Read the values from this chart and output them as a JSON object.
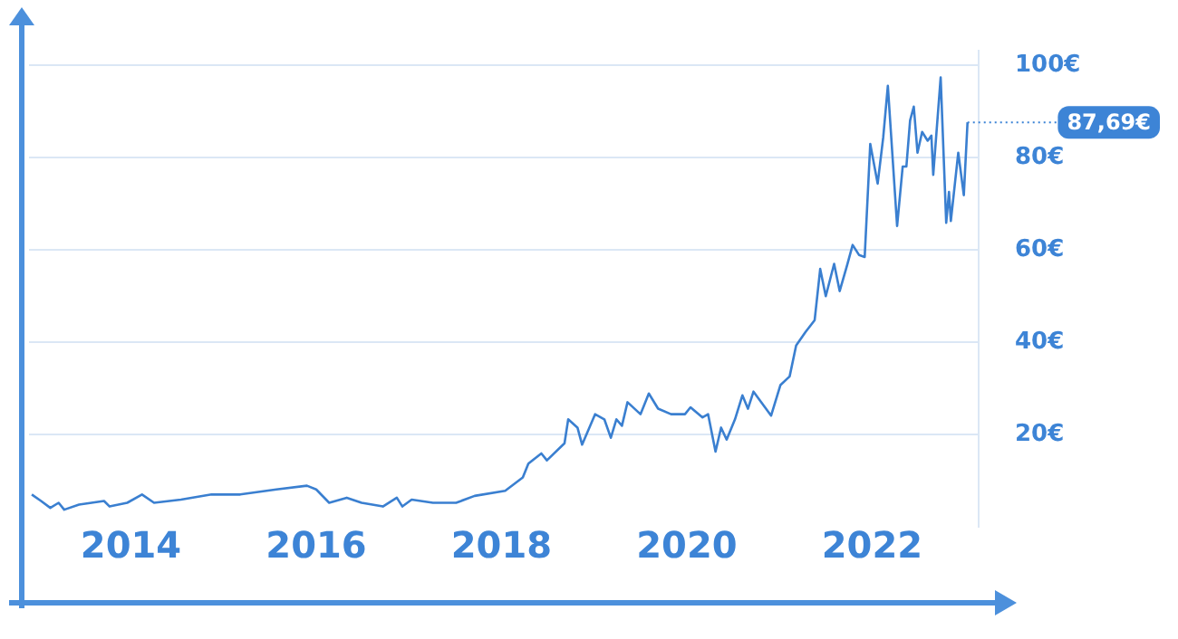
{
  "chart_data": {
    "type": "line",
    "x": [
      2012.93,
      2013.03,
      2013.13,
      2013.22,
      2013.28,
      2013.44,
      2013.71,
      2013.77,
      2013.96,
      2014.12,
      2014.25,
      2014.54,
      2014.87,
      2015.18,
      2015.57,
      2015.9,
      2016.0,
      2016.14,
      2016.33,
      2016.49,
      2016.72,
      2016.87,
      2016.93,
      2017.03,
      2017.26,
      2017.51,
      2017.71,
      2018.04,
      2018.23,
      2018.29,
      2018.43,
      2018.49,
      2018.68,
      2018.72,
      2018.82,
      2018.87,
      2019.01,
      2019.11,
      2019.18,
      2019.24,
      2019.3,
      2019.36,
      2019.5,
      2019.59,
      2019.69,
      2019.83,
      2019.98,
      2020.04,
      2020.17,
      2020.23,
      2020.31,
      2020.37,
      2020.43,
      2020.52,
      2020.6,
      2020.66,
      2020.72,
      2020.91,
      2021.01,
      2021.11,
      2021.18,
      2021.28,
      2021.38,
      2021.44,
      2021.5,
      2021.59,
      2021.65,
      2021.73,
      2021.79,
      2021.86,
      2021.92,
      2021.98,
      2022.06,
      2022.12,
      2022.17,
      2022.27,
      2022.33,
      2022.37,
      2022.41,
      2022.45,
      2022.49,
      2022.54,
      2022.6,
      2022.64,
      2022.66,
      2022.74,
      2022.8,
      2022.83,
      2022.85,
      2022.93,
      2022.99,
      2023.03
    ],
    "series": [
      {
        "color": "#3a7fd0",
        "values": [
          7.0,
          5.6,
          4.1,
          5.2,
          3.7,
          4.8,
          5.6,
          4.4,
          5.2,
          7.0,
          5.2,
          5.9,
          7.0,
          7.0,
          8.1,
          8.9,
          8.1,
          5.2,
          6.3,
          5.2,
          4.4,
          6.3,
          4.4,
          5.9,
          5.2,
          5.2,
          6.7,
          7.8,
          10.7,
          13.7,
          15.9,
          14.4,
          18.1,
          23.3,
          21.5,
          17.8,
          24.4,
          23.3,
          19.3,
          23.3,
          21.9,
          27.0,
          24.4,
          28.9,
          25.6,
          24.4,
          24.4,
          25.9,
          23.7,
          24.4,
          16.3,
          21.5,
          18.9,
          23.3,
          28.5,
          25.6,
          29.3,
          24.1,
          30.7,
          32.6,
          39.3,
          42.2,
          44.8,
          55.9,
          50.0,
          57.0,
          51.1,
          56.7,
          61.1,
          58.9,
          58.5,
          83.0,
          74.4,
          84.4,
          95.6,
          65.2,
          78.1,
          78.1,
          88.1,
          91.1,
          81.1,
          85.6,
          83.7,
          84.8,
          76.3,
          97.4,
          65.9,
          72.6,
          66.3,
          81.1,
          71.9,
          87.69
        ]
      }
    ],
    "xlim": [
      2012.9,
      2023.15
    ],
    "xticks": [
      2014,
      2016,
      2018,
      2020,
      2022
    ],
    "ylim": [
      0,
      103.3
    ],
    "yticks": [
      {
        "value": 20,
        "label": "20€"
      },
      {
        "value": 40,
        "label": "40€"
      },
      {
        "value": 60,
        "label": "60€"
      },
      {
        "value": 80,
        "label": "80€"
      },
      {
        "value": 100,
        "label": "100€"
      }
    ],
    "grid": "y",
    "legend": false,
    "marker": "none",
    "line_style": "solid",
    "annotations": [
      "87,69€"
    ]
  }
}
